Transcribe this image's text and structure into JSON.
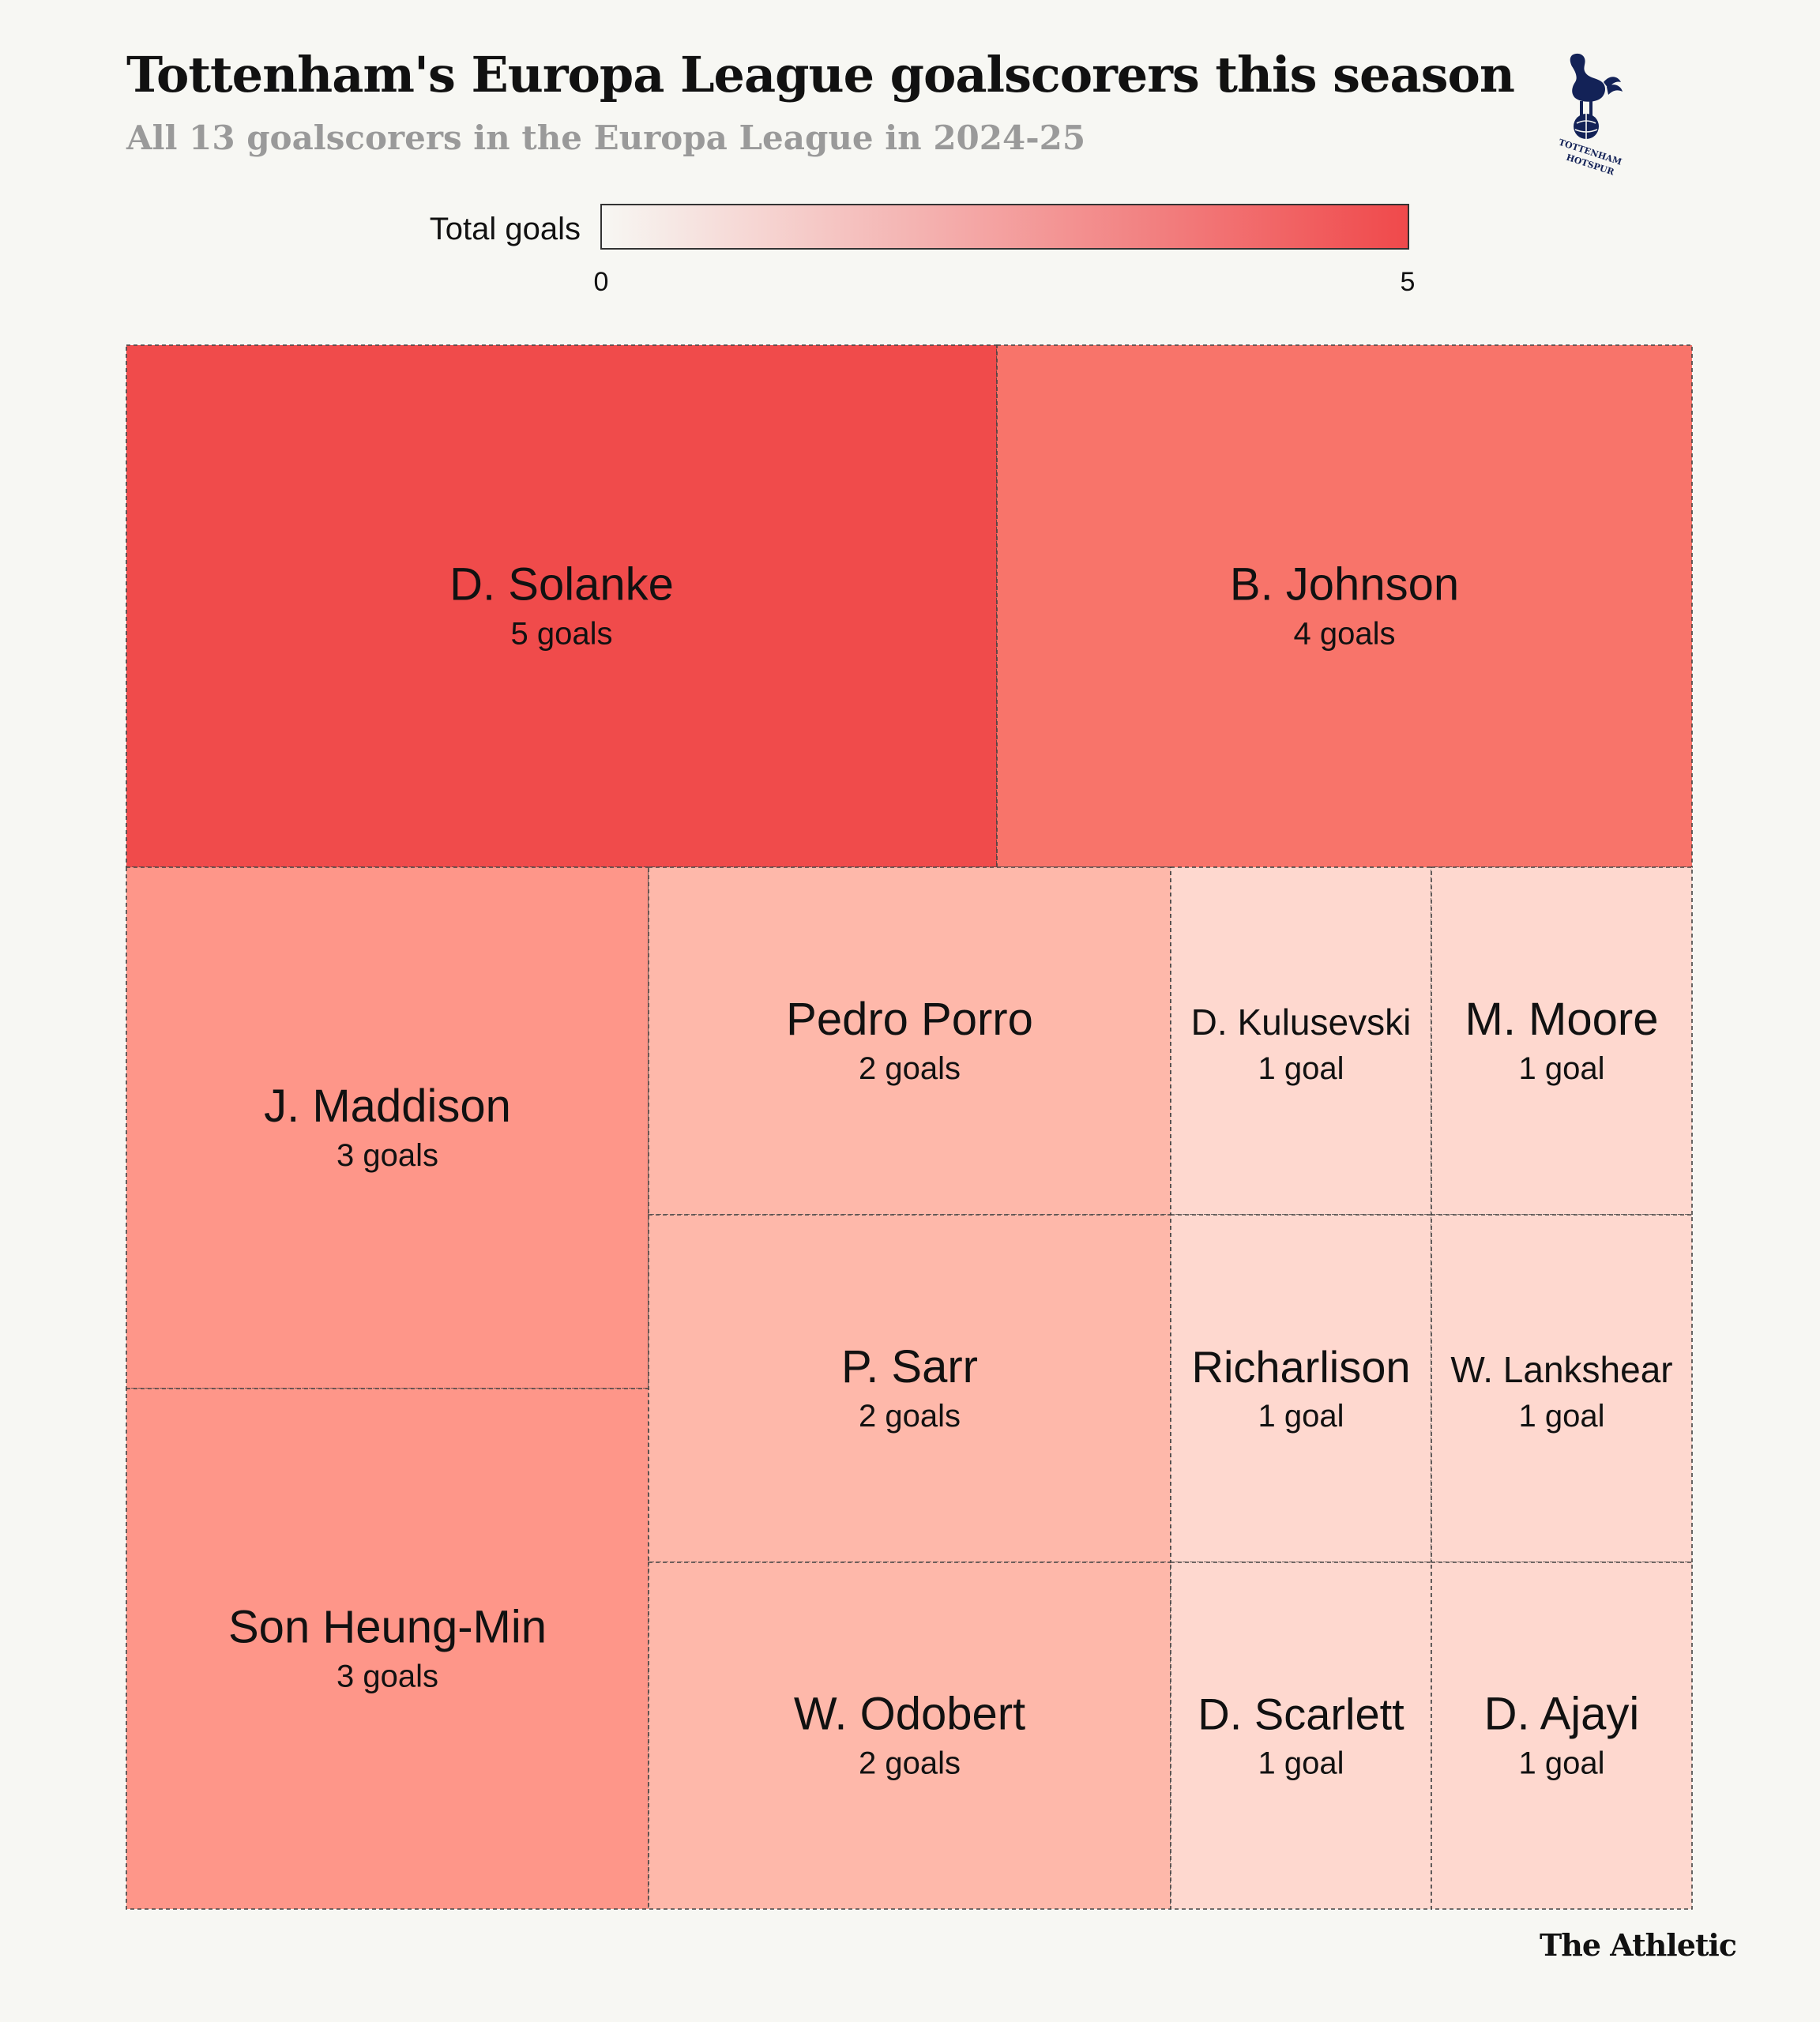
{
  "header": {
    "title": "Tottenham's Europa League goalscorers this season",
    "subtitle": "All 13 goalscorers in the Europa League in 2024-25",
    "logo_text": [
      "TOTTENHAM",
      "HOTSPUR"
    ]
  },
  "legend": {
    "label": "Total goals",
    "min_label": "0",
    "max_label": "5",
    "color_low": "#f7f7f3",
    "color_high": "#f0494b"
  },
  "footer": {
    "brand": "The Athletic"
  },
  "colors": {
    "5": "#f04b4b",
    "4": "#f8746a",
    "3": "#fe9689",
    "2": "#feb8aa",
    "1": "#fed8cf"
  },
  "chart_data": {
    "type": "treemap",
    "title": "Tottenham's Europa League goalscorers this season",
    "subtitle": "All 13 goalscorers in the Europa League in 2024-25",
    "color_scale": {
      "label": "Total goals",
      "min": 0,
      "max": 5
    },
    "items": [
      {
        "name": "D. Solanke",
        "value": 5,
        "value_label": "5 goals"
      },
      {
        "name": "B. Johnson",
        "value": 4,
        "value_label": "4 goals"
      },
      {
        "name": "J. Maddison",
        "value": 3,
        "value_label": "3 goals"
      },
      {
        "name": "Son Heung-Min",
        "value": 3,
        "value_label": "3 goals"
      },
      {
        "name": "Pedro Porro",
        "value": 2,
        "value_label": "2 goals"
      },
      {
        "name": "P. Sarr",
        "value": 2,
        "value_label": "2 goals"
      },
      {
        "name": "W. Odobert",
        "value": 2,
        "value_label": "2 goals"
      },
      {
        "name": "D. Kulusevski",
        "value": 1,
        "value_label": "1 goal"
      },
      {
        "name": "M. Moore",
        "value": 1,
        "value_label": "1 goal"
      },
      {
        "name": "Richarlison",
        "value": 1,
        "value_label": "1 goal"
      },
      {
        "name": "W. Lankshear",
        "value": 1,
        "value_label": "1 goal"
      },
      {
        "name": "D. Scarlett",
        "value": 1,
        "value_label": "1 goal"
      },
      {
        "name": "D. Ajayi",
        "value": 1,
        "value_label": "1 goal"
      }
    ]
  }
}
